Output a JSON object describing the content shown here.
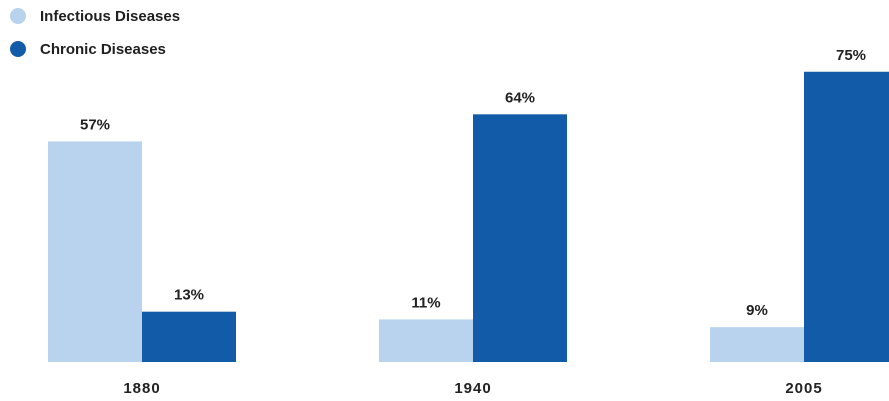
{
  "chart_data": {
    "type": "bar",
    "title": "",
    "xlabel": "",
    "ylabel": "",
    "categories": [
      "1880",
      "1940",
      "2005"
    ],
    "series": [
      {
        "name": "Infectious Diseases",
        "values": [
          57,
          11,
          9
        ],
        "labels": [
          "57%",
          "11%",
          "9%"
        ],
        "color": "#b9d3ee"
      },
      {
        "name": "Chronic Diseases",
        "values": [
          13,
          64,
          75
        ],
        "labels": [
          "13%",
          "64%",
          "75%"
        ],
        "color": "#125ba9"
      }
    ],
    "unit": "%",
    "ylim": [
      0,
      75
    ],
    "grid": false,
    "legend_position": "top-left"
  }
}
